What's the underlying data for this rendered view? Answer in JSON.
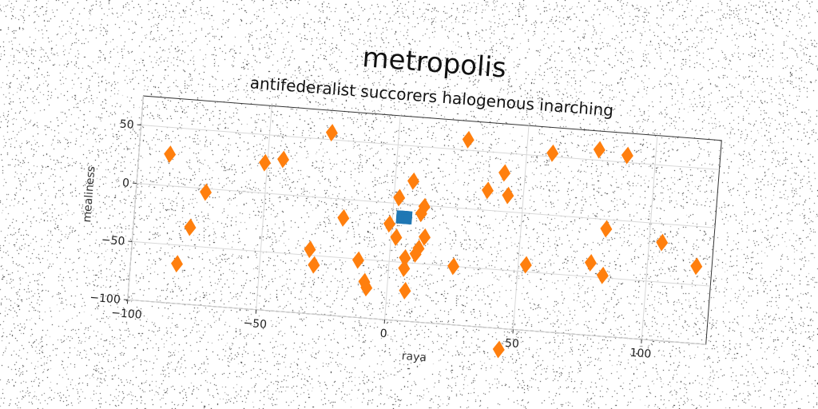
{
  "chart_data": {
    "type": "scatter",
    "title": "metropolis",
    "subtitle": "antifederalist succorers halogenous inarching",
    "xlabel": "raya",
    "ylabel": "mealiness",
    "xlim": [
      -100,
      125
    ],
    "ylim": [
      -100,
      75
    ],
    "xticks": [
      -100,
      -50,
      0,
      50,
      100
    ],
    "yticks": [
      -100,
      -50,
      0,
      50
    ],
    "xtick_labels": [
      "−100",
      "−50",
      "0",
      "50",
      "100"
    ],
    "ytick_labels": [
      "−100",
      "−50",
      "0",
      "50"
    ],
    "grid": true,
    "series": [
      {
        "marker": "square",
        "color": "#1f77b4",
        "points": [
          [
            3,
            -10
          ],
          [
            4,
            -10
          ],
          [
            5,
            -10
          ],
          [
            6,
            -10
          ],
          [
            3,
            -13
          ],
          [
            4,
            -13
          ],
          [
            5,
            -13
          ],
          [
            6,
            -13
          ]
        ]
      },
      {
        "marker": "diamond",
        "color": "#ff7f0e",
        "points": [
          [
            -88,
            27
          ],
          [
            -82,
            -66
          ],
          [
            -78,
            -34
          ],
          [
            -73,
            -3
          ],
          [
            -51,
            26
          ],
          [
            -44,
            30
          ],
          [
            -26,
            56
          ],
          [
            -31,
            -45
          ],
          [
            -29,
            -58
          ],
          [
            -19,
            -16
          ],
          [
            -12,
            -51
          ],
          [
            -9,
            -69
          ],
          [
            -8,
            -74
          ],
          [
            -1,
            -18
          ],
          [
            2,
            5
          ],
          [
            2,
            -29
          ],
          [
            6,
            -46
          ],
          [
            6,
            -55
          ],
          [
            7,
            20
          ],
          [
            7,
            -74
          ],
          [
            10,
            -42
          ],
          [
            11,
            -37
          ],
          [
            11,
            -7
          ],
          [
            12,
            -1
          ],
          [
            13,
            -27
          ],
          [
            25,
            -50
          ],
          [
            27,
            59
          ],
          [
            36,
            17
          ],
          [
            42,
            33
          ],
          [
            44,
            14
          ],
          [
            45,
            -118
          ],
          [
            53,
            -44
          ],
          [
            60,
            53
          ],
          [
            78,
            59
          ],
          [
            78,
            -38
          ],
          [
            83,
            -8
          ],
          [
            83,
            -48
          ],
          [
            89,
            56
          ],
          [
            105,
            -16
          ],
          [
            119,
            -34
          ]
        ]
      }
    ]
  }
}
